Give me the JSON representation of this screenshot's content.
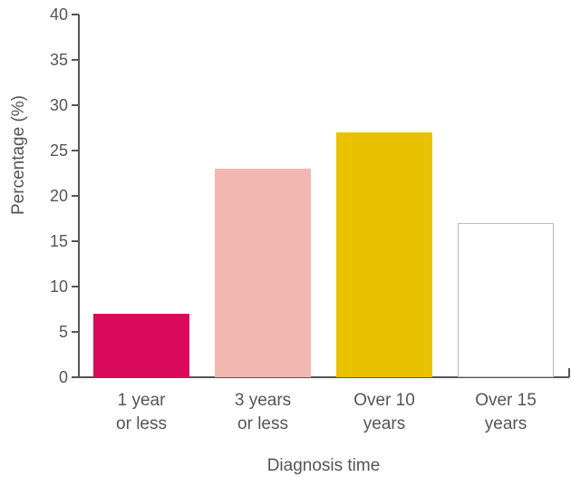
{
  "chart_data": {
    "type": "bar",
    "categories": [
      [
        "1 year",
        "or less"
      ],
      [
        "3 years",
        "or less"
      ],
      [
        "Over 10",
        "years"
      ],
      [
        "Over 15",
        "years"
      ]
    ],
    "values": [
      7,
      23,
      27,
      17
    ],
    "bar_colors": [
      "#d90a5c",
      "#f2b8b0",
      "#e8c200",
      "#ffffff"
    ],
    "bar_outline_colors": [
      "#d90a5c",
      "#f2b8b0",
      "#e8c200",
      "#bbbbbb"
    ],
    "xlabel": "Diagnosis time",
    "ylabel": "Percentage (%)",
    "ylim": [
      0,
      40
    ],
    "yticks": [
      0,
      5,
      10,
      15,
      20,
      25,
      30,
      35,
      40
    ],
    "grid": false,
    "axis_color": "#555555"
  }
}
